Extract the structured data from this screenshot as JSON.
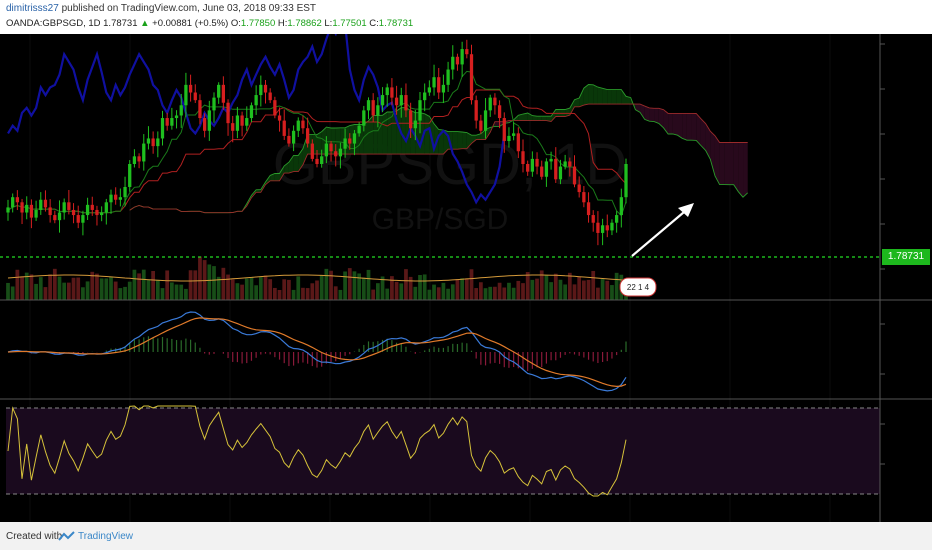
{
  "header": {
    "author": "dimitrisss27",
    "published_text": "published on TradingView.com, June 03, 2018 09:33 EST",
    "symbol": "OANDA:GBPSGD, 1D",
    "last": "1.78731",
    "change_arrow": "▲",
    "change": "+0.00881 (+0.5%)",
    "o_label": "O:",
    "o_value": "1.77850",
    "h_label": "H:",
    "h_value": "1.78862",
    "l_label": "L:",
    "l_value": "1.77501",
    "c_label": "C:",
    "c_value": "1.78731"
  },
  "watermark": {
    "symbol": "GBPSGD, 1D",
    "pair": "GBP/SGD"
  },
  "price_label": "1.78731",
  "badge_text": "22 1 4",
  "footer": {
    "created_with": "Created with",
    "brand": "TradingView"
  },
  "colors": {
    "bull": "#1fbf1f",
    "bear": "#d61f1f",
    "chikou": "#1010a0",
    "cloud_bull": "#0a3a0a",
    "cloud_bear": "#2a0a1e",
    "price_line": "#22dd22",
    "macd": "#3a7ad8",
    "signal": "#e07a2a",
    "rsi": "#d6c23a"
  },
  "chart_data": {
    "type": "candlestick",
    "title": "GBP/SGD, 1D",
    "last_price": 1.78731,
    "ohlc_last": {
      "open": 1.7785,
      "high": 1.78862,
      "low": 1.77501,
      "close": 1.78731
    },
    "closes": [
      1.77,
      1.774,
      1.772,
      1.768,
      1.771,
      1.766,
      1.769,
      1.773,
      1.77,
      1.767,
      1.765,
      1.768,
      1.772,
      1.769,
      1.767,
      1.764,
      1.767,
      1.771,
      1.769,
      1.767,
      1.768,
      1.772,
      1.775,
      1.773,
      1.774,
      1.778,
      1.787,
      1.79,
      1.788,
      1.795,
      1.797,
      1.794,
      1.797,
      1.805,
      1.802,
      1.805,
      1.806,
      1.81,
      1.818,
      1.815,
      1.812,
      1.805,
      1.8,
      1.808,
      1.813,
      1.818,
      1.811,
      1.803,
      1.8,
      1.806,
      1.802,
      1.805,
      1.81,
      1.814,
      1.818,
      1.815,
      1.812,
      1.806,
      1.804,
      1.798,
      1.795,
      1.8,
      1.804,
      1.801,
      1.795,
      1.789,
      1.787,
      1.79,
      1.795,
      1.792,
      1.79,
      1.793,
      1.797,
      1.795,
      1.799,
      1.802,
      1.808,
      1.812,
      1.806,
      1.81,
      1.814,
      1.817,
      1.813,
      1.81,
      1.814,
      1.808,
      1.801,
      1.804,
      1.812,
      1.815,
      1.817,
      1.821,
      1.815,
      1.818,
      1.824,
      1.829,
      1.826,
      1.832,
      1.83,
      1.812,
      1.804,
      1.8,
      1.808,
      1.813,
      1.81,
      1.805,
      1.796,
      1.798,
      1.799,
      1.792,
      1.787,
      1.784,
      1.789,
      1.786,
      1.782,
      1.788,
      1.789,
      1.781,
      1.786,
      1.788,
      1.786,
      1.779,
      1.776,
      1.772,
      1.767,
      1.764,
      1.76,
      1.763,
      1.761,
      1.764,
      1.767,
      1.774,
      1.787
    ],
    "indicators": [
      "Ichimoku",
      "Volume + MA",
      "MACD",
      "RSI"
    ],
    "macd_note": "MACD and signal declining to lows at right edge",
    "rsi_note": "RSI near lower band, turning up at end"
  }
}
